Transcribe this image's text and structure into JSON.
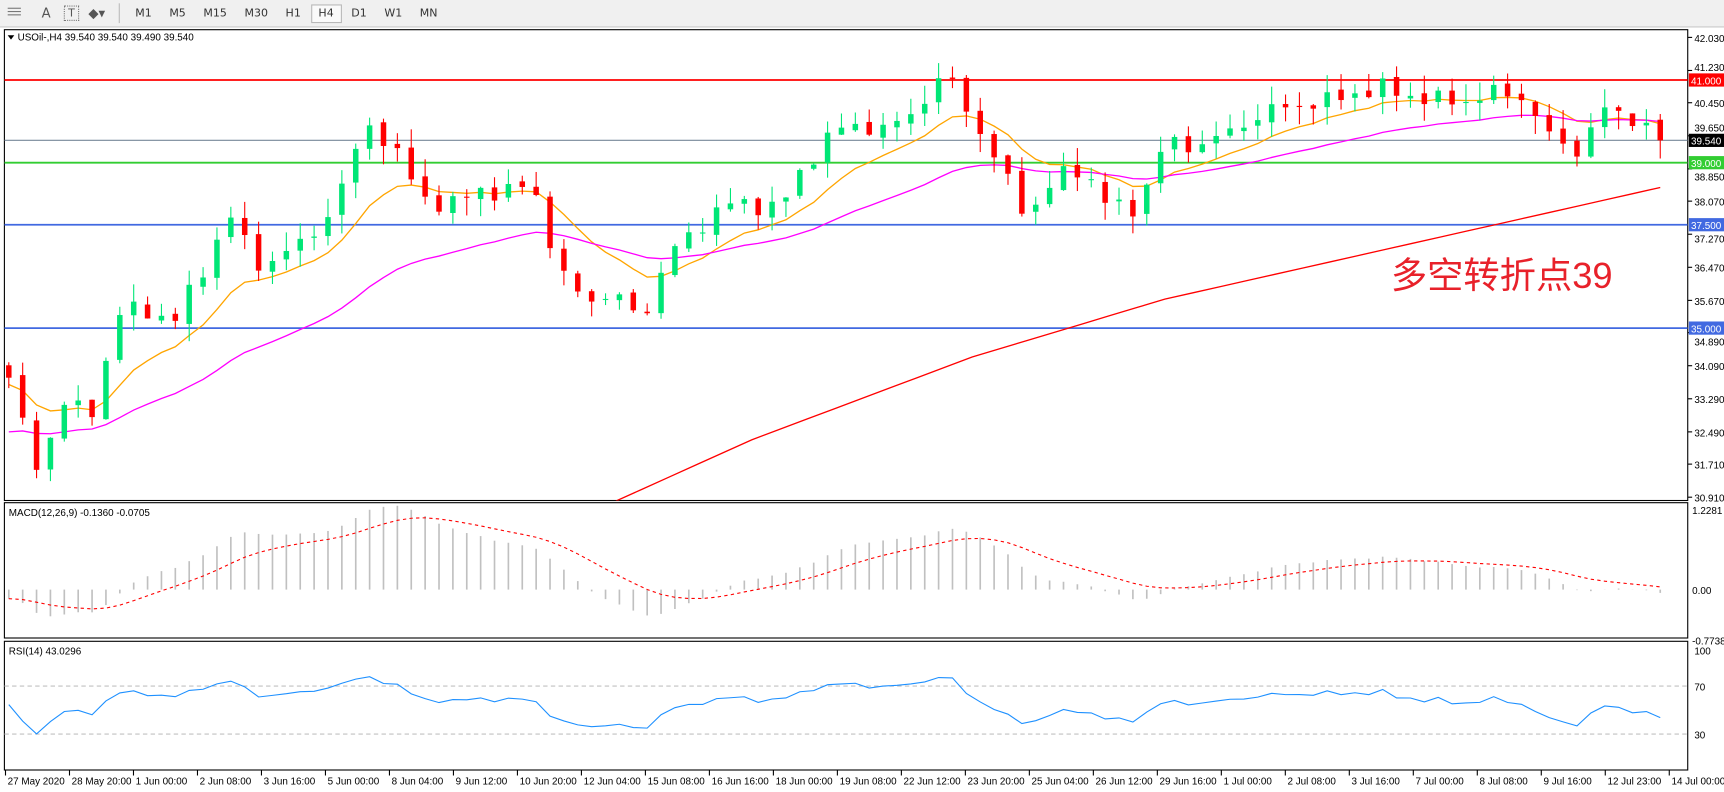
{
  "toolbar": {
    "icons": [
      "grid-icon",
      "text-a-icon",
      "text-box-icon",
      "shapes-icon"
    ],
    "text_a": "A",
    "text_box": "T",
    "timeframes": [
      "M1",
      "M5",
      "M15",
      "M30",
      "H1",
      "H4",
      "D1",
      "W1",
      "MN"
    ],
    "active_timeframe": "H4"
  },
  "header": {
    "symbol_label": "USOil-,H4  39.540 39.540 39.490 39.540"
  },
  "price_axis": {
    "ticks": [
      "42.030",
      "41.230",
      "40.450",
      "39.650",
      "38.850",
      "38.070",
      "37.270",
      "36.470",
      "35.670",
      "34.890",
      "34.090",
      "33.290",
      "32.490",
      "31.710",
      "30.910"
    ],
    "range": [
      30.91,
      42.03
    ]
  },
  "hlines": [
    {
      "price": 41.0,
      "label": "41.000",
      "color": "#ff0000"
    },
    {
      "price": 39.54,
      "label": "39.540",
      "color": "#778899",
      "tag_bg": "#000000"
    },
    {
      "price": 39.0,
      "label": "39.000",
      "color": "#32cd32"
    },
    {
      "price": 37.5,
      "label": "37.500",
      "color": "#4169e1"
    },
    {
      "price": 35.0,
      "label": "35.000",
      "color": "#4169e1"
    }
  ],
  "annotation": {
    "text": "多空转折点39",
    "color": "#e8212a"
  },
  "colors": {
    "bull": "#00e676",
    "bear": "#ff0000",
    "ma_fast": "#ffa500",
    "ma_mid": "#ff00ff",
    "ma_slow": "#ff0000",
    "rsi": "#1e90ff",
    "macd_hist": "#c0c0c0",
    "macd_signal": "#ff0000"
  },
  "chart_data": {
    "type": "candlestick",
    "close_path": [
      33.8,
      31.6,
      33.2,
      32.9,
      35.4,
      35.4,
      35.2,
      36.3,
      37.8,
      36.5,
      36.8,
      37.2,
      38.2,
      40.0,
      39.3,
      38.2,
      37.9,
      38.4,
      38.2,
      38.6,
      36.3,
      35.7,
      35.8,
      35.2,
      36.8,
      37.4,
      38.0,
      38.0,
      37.9,
      39.0,
      39.8,
      39.9,
      39.8,
      40.3,
      41.2,
      40.1,
      38.9,
      37.7,
      38.6,
      38.9,
      37.9,
      37.9,
      39.5,
      39.4,
      39.6,
      40.0,
      40.3,
      40.4,
      40.5,
      40.7,
      40.8,
      40.6,
      40.5,
      40.5,
      40.7,
      40.6,
      39.6,
      39.3,
      40.3,
      40.1,
      39.54
    ],
    "ma_slow": [
      null,
      null,
      null,
      null,
      null,
      null,
      null,
      null,
      null,
      null,
      null,
      null,
      null,
      null,
      null,
      null,
      null,
      null,
      null,
      null,
      null,
      null,
      30.8,
      31.1,
      31.4,
      31.7,
      32.0,
      32.3,
      32.55,
      32.8,
      33.05,
      33.3,
      33.55,
      33.8,
      34.05,
      34.3,
      34.5,
      34.7,
      34.9,
      35.1,
      35.3,
      35.5,
      35.7,
      35.85,
      36.0,
      36.15,
      36.3,
      36.45,
      36.6,
      36.75,
      36.9,
      37.05,
      37.2,
      37.35,
      37.5,
      37.65,
      37.8,
      37.95,
      38.1,
      38.25,
      38.4
    ],
    "time_labels": [
      "27 May 2020",
      "28 May 20:00",
      "1 Jun 00:00",
      "2 Jun 08:00",
      "3 Jun 16:00",
      "5 Jun 00:00",
      "8 Jun 04:00",
      "9 Jun 12:00",
      "10 Jun 20:00",
      "12 Jun 04:00",
      "15 Jun 08:00",
      "16 Jun 16:00",
      "18 Jun 00:00",
      "19 Jun 08:00",
      "22 Jun 12:00",
      "23 Jun 20:00",
      "25 Jun 04:00",
      "26 Jun 12:00",
      "29 Jun 16:00",
      "1 Jul 00:00",
      "2 Jul 08:00",
      "3 Jul 16:00",
      "7 Jul 00:00",
      "8 Jul 08:00",
      "9 Jul 16:00",
      "12 Jul 23:00",
      "14 Jul 00:00"
    ]
  },
  "macd": {
    "label": "MACD(12,26,9) -0.1360 -0.0705",
    "ticks": [
      "1.2281",
      "0.00",
      "-0.7738"
    ],
    "range": [
      -0.7738,
      1.2281
    ]
  },
  "rsi": {
    "label": "RSI(14) 43.0296",
    "ticks": [
      "100",
      "70",
      "30"
    ],
    "levels": [
      70,
      30
    ]
  }
}
